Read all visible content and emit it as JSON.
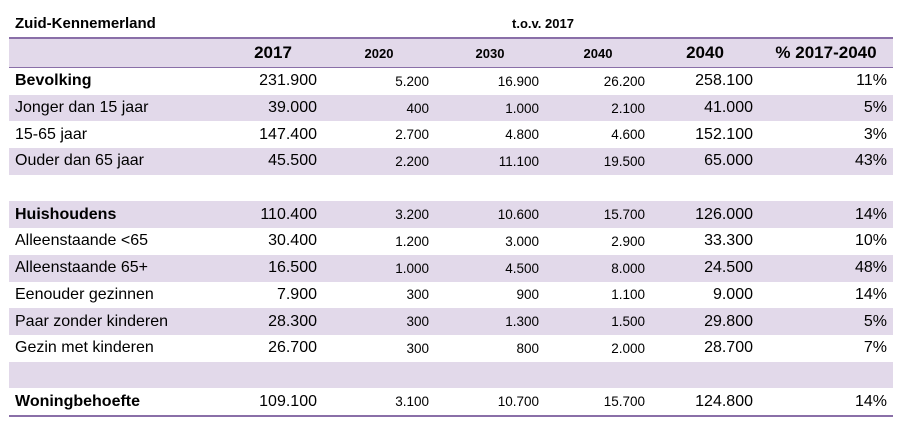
{
  "title": "Zuid-Kennemerland",
  "subtitle": "t.o.v. 2017",
  "columns": [
    "",
    "2017",
    "2020",
    "2030",
    "2040",
    "2040",
    "% 2017-2040"
  ],
  "rows": [
    {
      "label": "Bevolking",
      "values": [
        "231.900",
        "5.200",
        "16.900",
        "26.200",
        "258.100",
        "11%"
      ]
    },
    {
      "label": "Jonger dan 15 jaar",
      "values": [
        "39.000",
        "400",
        "1.000",
        "2.100",
        "41.000",
        "5%"
      ]
    },
    {
      "label": "15-65 jaar",
      "values": [
        "147.400",
        "2.700",
        "4.800",
        "4.600",
        "152.100",
        "3%"
      ]
    },
    {
      "label": "Ouder dan 65 jaar",
      "values": [
        "45.500",
        "2.200",
        "11.100",
        "19.500",
        "65.000",
        "43%"
      ]
    },
    {
      "label": "Huishoudens",
      "values": [
        "110.400",
        "3.200",
        "10.600",
        "15.700",
        "126.000",
        "14%"
      ]
    },
    {
      "label": "Alleenstaande <65",
      "values": [
        "30.400",
        "1.200",
        "3.000",
        "2.900",
        "33.300",
        "10%"
      ]
    },
    {
      "label": "Alleenstaande 65+",
      "values": [
        "16.500",
        "1.000",
        "4.500",
        "8.000",
        "24.500",
        "48%"
      ]
    },
    {
      "label": "Eenouder gezinnen",
      "values": [
        "7.900",
        "300",
        "900",
        "1.100",
        "9.000",
        "14%"
      ]
    },
    {
      "label": "Paar zonder kinderen",
      "values": [
        "28.300",
        "300",
        "1.300",
        "1.500",
        "29.800",
        "5%"
      ]
    },
    {
      "label": "Gezin met kinderen",
      "values": [
        "26.700",
        "300",
        "800",
        "2.000",
        "28.700",
        "7%"
      ]
    },
    {
      "label": "Woningbehoefte",
      "values": [
        "109.100",
        "3.100",
        "10.700",
        "15.700",
        "124.800",
        "14%"
      ]
    }
  ],
  "colors": {
    "shade": "#e2d9ea",
    "rule": "#8a6fa8"
  }
}
